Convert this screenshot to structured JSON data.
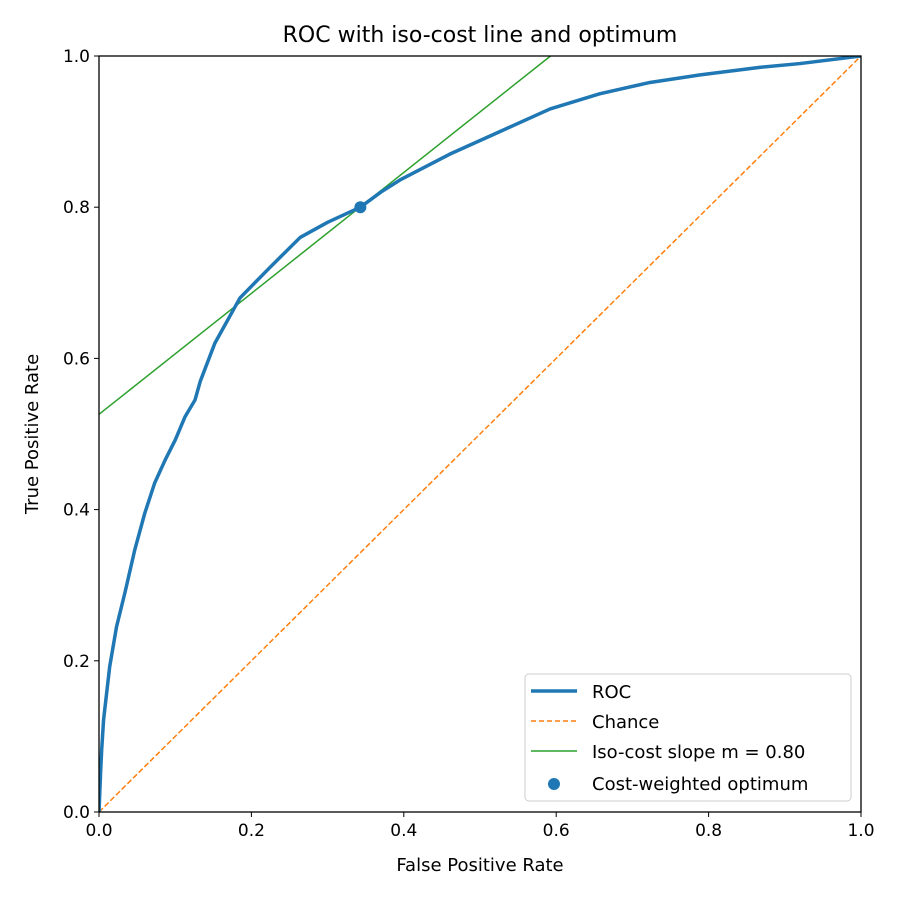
{
  "chart_data": {
    "type": "line",
    "title": "ROC with iso-cost line and optimum",
    "xlabel": "False Positive Rate",
    "ylabel": "True Positive Rate",
    "xlim": [
      0,
      1
    ],
    "ylim": [
      0,
      1
    ],
    "xticks": [
      "0.0",
      "0.2",
      "0.4",
      "0.6",
      "0.8",
      "1.0"
    ],
    "yticks": [
      "0.0",
      "0.2",
      "0.4",
      "0.6",
      "0.8",
      "1.0"
    ],
    "grid": false,
    "legend_position": "bottom-right",
    "series": [
      {
        "name": "ROC",
        "kind": "line",
        "color": "#1f77b4",
        "x": [
          0,
          0.002,
          0.0035,
          0.006,
          0.014,
          0.023,
          0.034,
          0.047,
          0.06,
          0.073,
          0.087,
          0.1,
          0.113,
          0.126,
          0.133,
          0.152,
          0.185,
          0.224,
          0.264,
          0.3,
          0.343,
          0.37,
          0.395,
          0.46,
          0.526,
          0.592,
          0.657,
          0.723,
          0.789,
          0.867,
          0.92,
          1.0
        ],
        "y": [
          0,
          0.05,
          0.082,
          0.122,
          0.192,
          0.245,
          0.29,
          0.347,
          0.395,
          0.435,
          0.466,
          0.492,
          0.523,
          0.545,
          0.57,
          0.62,
          0.68,
          0.72,
          0.76,
          0.78,
          0.8,
          0.82,
          0.836,
          0.87,
          0.9,
          0.93,
          0.95,
          0.965,
          0.975,
          0.985,
          0.99,
          1.0
        ]
      },
      {
        "name": "Chance",
        "kind": "dashed-line",
        "color": "#ff7f0e",
        "x": [
          0,
          1
        ],
        "y": [
          0,
          1
        ]
      },
      {
        "name": "Iso-cost slope m = 0.80",
        "kind": "line",
        "color": "#2ca02c",
        "x": [
          0,
          0.5925
        ],
        "y": [
          0.526,
          1.0
        ]
      },
      {
        "name": "Cost-weighted optimum",
        "kind": "scatter",
        "color": "#1f77b4",
        "x": [
          0.343
        ],
        "y": [
          0.8
        ]
      }
    ]
  }
}
